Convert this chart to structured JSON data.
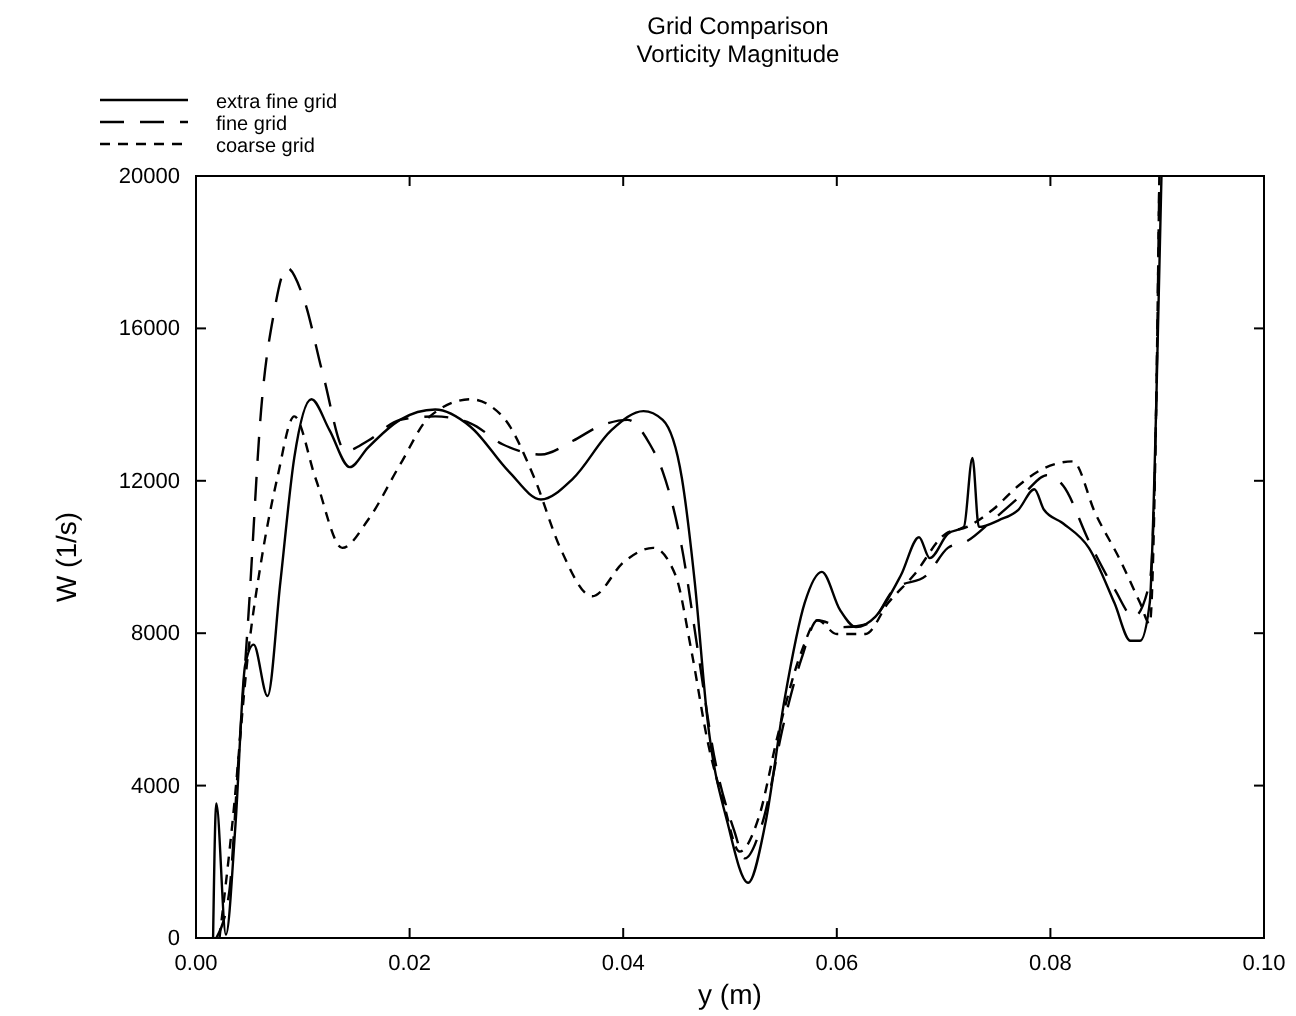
{
  "chart_data": {
    "type": "line",
    "title": "Grid Comparison",
    "subtitle": "Vorticity Magnitude",
    "xlabel": "y (m)",
    "ylabel": "W (1/s)",
    "xlim": [
      0,
      0.1
    ],
    "xticks": [
      {
        "value": 0,
        "label": "0.00"
      },
      {
        "value": 0.02,
        "label": "0.02"
      },
      {
        "value": 0.04,
        "label": "0.04"
      },
      {
        "value": 0.06,
        "label": "0.06"
      },
      {
        "value": 0.08,
        "label": "0.08"
      },
      {
        "value": 0.1,
        "label": "0.10"
      }
    ],
    "ylim": [
      0,
      20000
    ],
    "yticks": [
      0,
      4000,
      8000,
      12000,
      16000,
      20000
    ],
    "grid": false,
    "legend": "top left",
    "marker": "none",
    "series": [
      {
        "name": "extra fine grid",
        "color": "#000000",
        "line_style": "solid",
        "x": [
          0.0016,
          0.0019,
          0.0028,
          0.0037,
          0.0046,
          0.0054,
          0.0067,
          0.0079,
          0.0092,
          0.0108,
          0.0125,
          0.0144,
          0.0161,
          0.0191,
          0.0224,
          0.0257,
          0.0293,
          0.0323,
          0.0353,
          0.0389,
          0.0419,
          0.0437,
          0.0455,
          0.0467,
          0.0479,
          0.0498,
          0.0517,
          0.0533,
          0.0551,
          0.057,
          0.0586,
          0.0603,
          0.0618,
          0.0636,
          0.066,
          0.0677,
          0.0687,
          0.0704,
          0.0719,
          0.0727,
          0.0733,
          0.0752,
          0.077,
          0.0785,
          0.0794,
          0.0812,
          0.0836,
          0.086,
          0.0875,
          0.0884,
          0.0893,
          0.0899,
          0.0904
        ],
        "values": [
          0,
          3530,
          90,
          2990,
          7160,
          7700,
          6350,
          9340,
          12600,
          14140,
          13330,
          12360,
          12870,
          13600,
          13870,
          13420,
          12240,
          11510,
          12060,
          13330,
          13830,
          13600,
          12060,
          9340,
          5710,
          2990,
          1450,
          2990,
          6250,
          8800,
          9610,
          8610,
          8160,
          8430,
          9520,
          10520,
          9970,
          10610,
          10790,
          12600,
          10790,
          10970,
          11240,
          11780,
          11240,
          10880,
          10240,
          8790,
          7800,
          7800,
          8790,
          13870,
          20000
        ]
      },
      {
        "name": "fine grid",
        "color": "#000000",
        "line_style": "dashed",
        "x": [
          0.0019,
          0.0031,
          0.004,
          0.0049,
          0.0061,
          0.0073,
          0.0085,
          0.0101,
          0.0119,
          0.014,
          0.0161,
          0.0191,
          0.0224,
          0.0257,
          0.0287,
          0.0323,
          0.0353,
          0.0377,
          0.0404,
          0.0425,
          0.0437,
          0.0455,
          0.047,
          0.0485,
          0.0504,
          0.0514,
          0.053,
          0.0551,
          0.0567,
          0.0582,
          0.0606,
          0.063,
          0.0654,
          0.0684,
          0.0704,
          0.0722,
          0.0746,
          0.0776,
          0.0797,
          0.0812,
          0.0836,
          0.086,
          0.0878,
          0.0893,
          0.0899,
          0.0902
        ],
        "values": [
          0,
          1180,
          4800,
          8430,
          13870,
          16410,
          17590,
          16770,
          14780,
          12780,
          13050,
          13600,
          13690,
          13510,
          12960,
          12690,
          13050,
          13420,
          13600,
          12960,
          12240,
          10240,
          7520,
          4800,
          2810,
          2090,
          2990,
          5710,
          7340,
          8340,
          8160,
          8250,
          9160,
          9520,
          10240,
          10420,
          10970,
          11690,
          12150,
          11870,
          10420,
          9160,
          8430,
          9340,
          13870,
          20000
        ]
      },
      {
        "name": "coarse grid",
        "color": "#000000",
        "line_style": "dotted",
        "x": [
          0.0022,
          0.0034,
          0.0049,
          0.0061,
          0.0076,
          0.0092,
          0.0112,
          0.0137,
          0.0161,
          0.0191,
          0.0219,
          0.0257,
          0.0287,
          0.0317,
          0.0341,
          0.0371,
          0.0401,
          0.0428,
          0.0449,
          0.0464,
          0.0479,
          0.0494,
          0.0509,
          0.0527,
          0.0545,
          0.0567,
          0.0582,
          0.06,
          0.0627,
          0.0648,
          0.0672,
          0.0702,
          0.0722,
          0.0746,
          0.077,
          0.0794,
          0.0821,
          0.0842,
          0.0866,
          0.0884,
          0.0893,
          0.0899,
          0.0902
        ],
        "values": [
          0,
          2990,
          7520,
          9880,
          12060,
          13690,
          12060,
          10240,
          10970,
          12420,
          13690,
          14140,
          13690,
          12060,
          10240,
          8970,
          9880,
          10240,
          9520,
          7520,
          5170,
          3540,
          2270,
          3170,
          5350,
          7520,
          8340,
          7980,
          7980,
          8790,
          9520,
          10610,
          10790,
          11240,
          11870,
          12330,
          12510,
          11150,
          9880,
          8790,
          8250,
          13870,
          20000
        ]
      }
    ]
  }
}
